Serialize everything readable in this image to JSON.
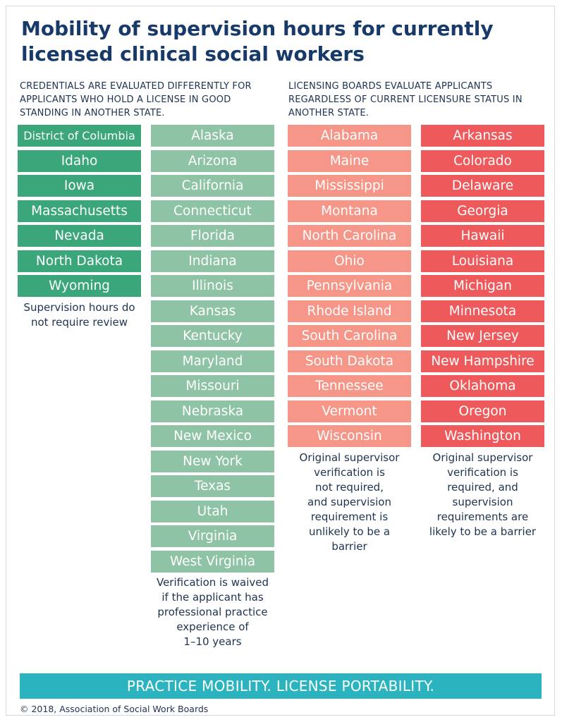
{
  "title": "Mobility of supervision hours for currently licensed clinical social workers",
  "intro_left": "CREDENTIALS ARE EVALUATED DIFFERENTLY FOR\nAPPLICANTS WHO HOLD A LICENSE IN GOOD\nSTANDING IN ANOTHER STATE.",
  "intro_right": "LICENSING BOARDS EVALUATE APPLICANTS\nREGARDLESS OF CURRENT LICENSURE STATUS IN\nANOTHER STATE.",
  "colors": {
    "title": "#173a6a",
    "group1": "#3aa67a",
    "group2": "#8ec3a5",
    "group3": "#f69688",
    "group4": "#ee5a5b",
    "banner": "#2bb4bf"
  },
  "groups": [
    {
      "states": [
        "District of Columbia",
        "Idaho",
        "Iowa",
        "Massachusetts",
        "Nevada",
        "North Dakota",
        "Wyoming"
      ],
      "note": "Supervision hours do\nnot require review"
    },
    {
      "states": [
        "Alaska",
        "Arizona",
        "California",
        "Connecticut",
        "Florida",
        "Indiana",
        "Illinois",
        "Kansas",
        "Kentucky",
        "Maryland",
        "Missouri",
        "Nebraska",
        "New Mexico",
        "New York",
        "Texas",
        "Utah",
        "Virginia",
        "West Virginia"
      ],
      "note": "Verification is waived\nif the applicant has\nprofessional practice\nexperience of\n1–10 years"
    },
    {
      "states": [
        "Alabama",
        "Maine",
        "Mississippi",
        "Montana",
        "North Carolina",
        "Ohio",
        "Pennsylvania",
        "Rhode Island",
        "South Carolina",
        "South Dakota",
        "Tennessee",
        "Vermont",
        "Wisconsin"
      ],
      "note": "Original supervisor\nverification is\nnot required,\nand supervision\nrequirement is\nunlikely to be a\nbarrier"
    },
    {
      "states": [
        "Arkansas",
        "Colorado",
        "Delaware",
        "Georgia",
        "Hawaii",
        "Louisiana",
        "Michigan",
        "Minnesota",
        "New Jersey",
        "New Hampshire",
        "Oklahoma",
        "Oregon",
        "Washington"
      ],
      "note": "Original supervisor\nverification is\nrequired, and\nsupervision\nrequirements are\nlikely to be a barrier"
    }
  ],
  "banner": "PRACTICE MOBILITY. LICENSE PORTABILITY.",
  "copyright": "© 2018, Association of Social Work Boards"
}
